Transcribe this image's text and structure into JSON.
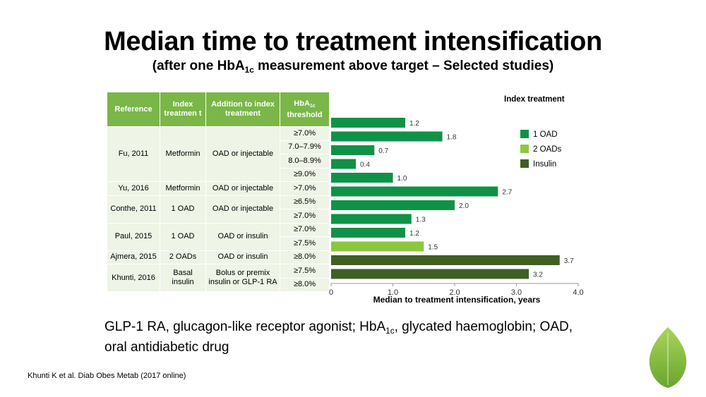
{
  "title": "Median time to treatment intensification",
  "subtitle": {
    "prefix": "(after one  HbA",
    "sub": "1c",
    "suffix": " measurement above target – Selected studies)"
  },
  "table": {
    "headers": {
      "reference": "Reference",
      "index_treatment": "Index treatmen t",
      "addition": "Addition to index treatment",
      "threshold_main": "HbA",
      "threshold_sub": "1c",
      "threshold_suffix": "threshold"
    },
    "groups": [
      {
        "reference": "Fu, 2011",
        "index_treatment": "Metformin",
        "addition": "OAD or injectable",
        "thresholds": [
          "≥7.0%",
          "7.0–7.9%",
          "8.0–8.9%",
          "≥9.0%"
        ]
      },
      {
        "reference": "Yu, 2016",
        "index_treatment": "Metformin",
        "addition": "OAD or injectable",
        "thresholds": [
          ">7.0%"
        ]
      },
      {
        "reference": "Conthe, 2011",
        "index_treatment": "1 OAD",
        "addition": "OAD or injectable",
        "thresholds": [
          "≥6.5%",
          "≥7.0%"
        ]
      },
      {
        "reference": "Paul, 2015",
        "index_treatment": "1 OAD",
        "addition": "OAD or insulin",
        "thresholds": [
          "≥7.0%",
          "≥7.5%"
        ]
      },
      {
        "reference": "Ajmera, 2015",
        "index_treatment": "2 OADs",
        "addition": "OAD or insulin",
        "thresholds": [
          "≥8.0%"
        ]
      },
      {
        "reference": "Khunti, 2016",
        "index_treatment": "Basal insulin",
        "addition": "Bolus or premix insulin or GLP-1 RA",
        "thresholds": [
          "≥7.5%",
          "≥8.0%"
        ]
      }
    ]
  },
  "chart_data": {
    "type": "bar",
    "orientation": "horizontal",
    "title": "",
    "xlabel": "Median to treatment intensification, years",
    "ylabel": "",
    "xlim": [
      0,
      4.0
    ],
    "xticks": [
      "0",
      "1.0",
      "2.0",
      "3.0",
      "4.0"
    ],
    "legend_title": "Index treatment",
    "legend_position": "top-right",
    "grid": false,
    "series": [
      {
        "name": "1 OAD",
        "color": "#0f9247"
      },
      {
        "name": "2 OADs",
        "color": "#8dc63f"
      },
      {
        "name": "Insulin",
        "color": "#3f5f23"
      }
    ],
    "bars": [
      {
        "value": 1.2,
        "label": "1.2",
        "series": "1 OAD"
      },
      {
        "value": 1.8,
        "label": "1.8",
        "series": "1 OAD"
      },
      {
        "value": 0.7,
        "label": "0.7",
        "series": "1 OAD"
      },
      {
        "value": 0.4,
        "label": "0.4",
        "series": "1 OAD"
      },
      {
        "value": 1.0,
        "label": "1.0",
        "series": "1 OAD"
      },
      {
        "value": 2.7,
        "label": "2.7",
        "series": "1 OAD"
      },
      {
        "value": 2.0,
        "label": "2.0",
        "series": "1 OAD"
      },
      {
        "value": 1.3,
        "label": "1.3",
        "series": "1 OAD"
      },
      {
        "value": 1.2,
        "label": "1.2",
        "series": "1 OAD"
      },
      {
        "value": 1.5,
        "label": "1.5",
        "series": "2 OADs"
      },
      {
        "value": 3.7,
        "label": "3.7",
        "series": "Insulin"
      },
      {
        "value": 3.2,
        "label": "3.2",
        "series": "Insulin"
      }
    ]
  },
  "footnote": {
    "part1": "GLP-1 RA, glucagon-like receptor agonist; HbA",
    "sub": "1c",
    "part2": ", glycated haemoglobin; OAD,",
    "line2": "oral antidiabetic drug"
  },
  "citation": "Khunti K et al. Diab Obes Metab (2017 online)",
  "colors": {
    "header_green": "#7ab648",
    "row_fill": "#eef4e6",
    "logo_green": "#8dc63f"
  }
}
